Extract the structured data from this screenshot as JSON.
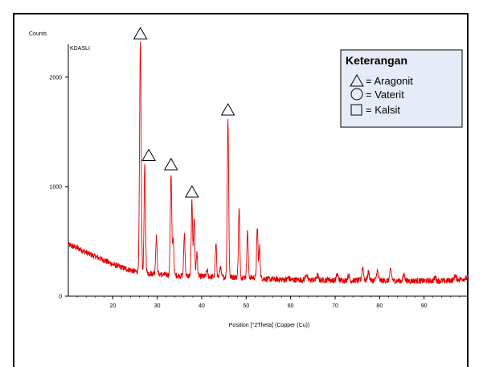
{
  "chart_data": {
    "type": "line",
    "sample_label": "KDASLI",
    "xlabel": "Position [°2Theta] (Copper (Cu))",
    "ylabel": "Counts",
    "xlim": [
      10,
      100
    ],
    "ylim": [
      0,
      2300
    ],
    "x_ticks": [
      20,
      30,
      40,
      50,
      60,
      70,
      80,
      90
    ],
    "y_ticks": [
      0,
      1000,
      2000
    ],
    "line_color": "#e00000",
    "baseline": [
      [
        10,
        470
      ],
      [
        12,
        440
      ],
      [
        15,
        380
      ],
      [
        18,
        330
      ],
      [
        20,
        290
      ],
      [
        23,
        250
      ],
      [
        25,
        225
      ],
      [
        28,
        210
      ],
      [
        32,
        195
      ],
      [
        36,
        185
      ],
      [
        40,
        180
      ],
      [
        45,
        175
      ],
      [
        50,
        172
      ],
      [
        53,
        168
      ],
      [
        55,
        155
      ],
      [
        60,
        150
      ],
      [
        65,
        148
      ],
      [
        70,
        145
      ],
      [
        75,
        143
      ],
      [
        80,
        142
      ],
      [
        85,
        140
      ],
      [
        90,
        140
      ],
      [
        95,
        140
      ],
      [
        100,
        165
      ]
    ],
    "peaks": [
      {
        "x": 26.2,
        "y": 2300,
        "w": 0.18
      },
      {
        "x": 27.2,
        "y": 1200,
        "w": 0.16
      },
      {
        "x": 29.8,
        "y": 540,
        "w": 0.16
      },
      {
        "x": 33.1,
        "y": 1120,
        "w": 0.16
      },
      {
        "x": 33.6,
        "y": 520,
        "w": 0.14
      },
      {
        "x": 36.1,
        "y": 570,
        "w": 0.15
      },
      {
        "x": 37.8,
        "y": 870,
        "w": 0.15
      },
      {
        "x": 38.3,
        "y": 720,
        "w": 0.14
      },
      {
        "x": 38.9,
        "y": 400,
        "w": 0.14
      },
      {
        "x": 41.2,
        "y": 240,
        "w": 0.15
      },
      {
        "x": 43.2,
        "y": 470,
        "w": 0.15
      },
      {
        "x": 44.2,
        "y": 270,
        "w": 0.15
      },
      {
        "x": 45.9,
        "y": 1620,
        "w": 0.16
      },
      {
        "x": 48.4,
        "y": 800,
        "w": 0.15
      },
      {
        "x": 50.3,
        "y": 600,
        "w": 0.15
      },
      {
        "x": 52.5,
        "y": 630,
        "w": 0.15
      },
      {
        "x": 53.0,
        "y": 450,
        "w": 0.14
      },
      {
        "x": 59.5,
        "y": 170,
        "w": 0.2
      },
      {
        "x": 63.5,
        "y": 200,
        "w": 0.2
      },
      {
        "x": 66.0,
        "y": 190,
        "w": 0.2
      },
      {
        "x": 68.5,
        "y": 160,
        "w": 0.2
      },
      {
        "x": 70.5,
        "y": 200,
        "w": 0.2
      },
      {
        "x": 73.0,
        "y": 190,
        "w": 0.2
      },
      {
        "x": 76.2,
        "y": 260,
        "w": 0.2
      },
      {
        "x": 77.5,
        "y": 220,
        "w": 0.2
      },
      {
        "x": 79.5,
        "y": 230,
        "w": 0.2
      },
      {
        "x": 82.5,
        "y": 240,
        "w": 0.2
      },
      {
        "x": 85.5,
        "y": 200,
        "w": 0.2
      },
      {
        "x": 92.5,
        "y": 175,
        "w": 0.2
      },
      {
        "x": 97.0,
        "y": 190,
        "w": 0.2
      }
    ],
    "markers": [
      {
        "shape": "triangle",
        "x": 26.2,
        "y": 2400
      },
      {
        "shape": "triangle",
        "x": 28.1,
        "y": 1290
      },
      {
        "shape": "triangle",
        "x": 33.1,
        "y": 1205
      },
      {
        "shape": "triangle",
        "x": 37.8,
        "y": 955
      },
      {
        "shape": "triangle",
        "x": 45.9,
        "y": 1705
      }
    ],
    "legend": {
      "title": "Keterangan",
      "placement": "top-right",
      "items": [
        {
          "symbol": "triangle",
          "label": "= Aragonit"
        },
        {
          "symbol": "circle",
          "label": "= Vaterit"
        },
        {
          "symbol": "square",
          "label": "= Kalsit"
        }
      ],
      "background": "#e6ecf7"
    }
  }
}
